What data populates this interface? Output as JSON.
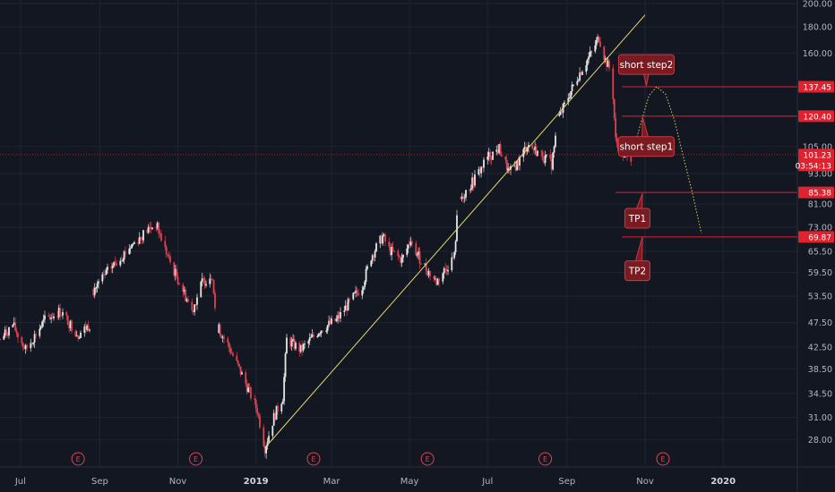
{
  "chart_data": {
    "type": "candlestick",
    "title": "",
    "y_scale": "log",
    "ylim": [
      26,
      200
    ],
    "xlim": [
      "2018-06-15",
      "2020-02-28"
    ],
    "grid": true,
    "y_ticks": [
      {
        "value": 200,
        "label": "200.00"
      },
      {
        "value": 180,
        "label": "180.00"
      },
      {
        "value": 160,
        "label": "160.00"
      },
      {
        "value": 105,
        "label": "105.00"
      },
      {
        "value": 93,
        "label": "93.00"
      },
      {
        "value": 81,
        "label": "81.00"
      },
      {
        "value": 73,
        "label": "73.00"
      },
      {
        "value": 65.5,
        "label": "65.50"
      },
      {
        "value": 59.5,
        "label": "59.50"
      },
      {
        "value": 53.5,
        "label": "53.50"
      },
      {
        "value": 47.5,
        "label": "47.50"
      },
      {
        "value": 42.5,
        "label": "42.50"
      },
      {
        "value": 38.5,
        "label": "38.50"
      },
      {
        "value": 34.5,
        "label": "34.50"
      },
      {
        "value": 31,
        "label": "31.00"
      },
      {
        "value": 28,
        "label": "28.00"
      }
    ],
    "x_ticks": [
      {
        "date": "2018-07-01",
        "label": "Jul",
        "bold": false
      },
      {
        "date": "2018-09-01",
        "label": "Sep",
        "bold": false
      },
      {
        "date": "2018-11-01",
        "label": "Nov",
        "bold": false
      },
      {
        "date": "2019-01-01",
        "label": "2019",
        "bold": true
      },
      {
        "date": "2019-03-01",
        "label": "Mar",
        "bold": false
      },
      {
        "date": "2019-05-01",
        "label": "May",
        "bold": false
      },
      {
        "date": "2019-07-01",
        "label": "Jul",
        "bold": false
      },
      {
        "date": "2019-09-01",
        "label": "Sep",
        "bold": false
      },
      {
        "date": "2019-11-01",
        "label": "Nov",
        "bold": false
      },
      {
        "date": "2020-01-01",
        "label": "2020",
        "bold": true
      }
    ],
    "price_path": [
      [
        "2018-06-15",
        44
      ],
      [
        "2018-06-25",
        47
      ],
      [
        "2018-07-05",
        42
      ],
      [
        "2018-07-20",
        48
      ],
      [
        "2018-08-01",
        50
      ],
      [
        "2018-08-15",
        45
      ],
      [
        "2018-08-24",
        47
      ],
      [
        "2018-08-27",
        55
      ],
      [
        "2018-09-10",
        61
      ],
      [
        "2018-09-25",
        67
      ],
      [
        "2018-10-08",
        72
      ],
      [
        "2018-10-15",
        74
      ],
      [
        "2018-10-25",
        63
      ],
      [
        "2018-11-05",
        55
      ],
      [
        "2018-11-12",
        50
      ],
      [
        "2018-11-20",
        57
      ],
      [
        "2018-11-28",
        59
      ],
      [
        "2018-12-01",
        47
      ],
      [
        "2018-12-10",
        43
      ],
      [
        "2018-12-20",
        38
      ],
      [
        "2019-01-02",
        32
      ],
      [
        "2019-01-08",
        27
      ],
      [
        "2019-01-15",
        31
      ],
      [
        "2019-01-22",
        34
      ],
      [
        "2019-01-25",
        44
      ],
      [
        "2019-02-05",
        42
      ],
      [
        "2019-02-20",
        46
      ],
      [
        "2019-03-05",
        48
      ],
      [
        "2019-03-15",
        52
      ],
      [
        "2019-03-25",
        56
      ],
      [
        "2019-04-01",
        64
      ],
      [
        "2019-04-10",
        70
      ],
      [
        "2019-04-15",
        66
      ],
      [
        "2019-04-25",
        63
      ],
      [
        "2019-05-01",
        68
      ],
      [
        "2019-05-08",
        64
      ],
      [
        "2019-05-15",
        60
      ],
      [
        "2019-05-22",
        57
      ],
      [
        "2019-05-30",
        61
      ],
      [
        "2019-06-05",
        64
      ],
      [
        "2019-06-08",
        82
      ],
      [
        "2019-06-20",
        90
      ],
      [
        "2019-07-01",
        100
      ],
      [
        "2019-07-10",
        104
      ],
      [
        "2019-07-18",
        93
      ],
      [
        "2019-07-25",
        98
      ],
      [
        "2019-08-01",
        106
      ],
      [
        "2019-08-10",
        102
      ],
      [
        "2019-08-20",
        97
      ],
      [
        "2019-08-25",
        118
      ],
      [
        "2019-09-01",
        130
      ],
      [
        "2019-09-10",
        145
      ],
      [
        "2019-09-20",
        160
      ],
      [
        "2019-09-26",
        172
      ],
      [
        "2019-10-01",
        155
      ],
      [
        "2019-10-06",
        146
      ],
      [
        "2019-10-09",
        108
      ],
      [
        "2019-10-14",
        102
      ],
      [
        "2019-10-18",
        99
      ],
      [
        "2019-10-22",
        101
      ]
    ],
    "price_breaks": [
      "2018-08-27",
      "2018-12-01",
      "2019-05-01",
      "2019-06-08",
      "2019-08-25"
    ],
    "trendline": {
      "from": [
        "2019-01-08",
        27
      ],
      "to": [
        "2019-11-01",
        190
      ]
    },
    "horizontal_levels": [
      {
        "value": 137.45,
        "label": "137.45",
        "from": "2019-10-14"
      },
      {
        "value": 120.4,
        "label": "120.40",
        "from": "2019-10-14"
      },
      {
        "value": 85.38,
        "label": "85.38",
        "from": "2019-10-09"
      },
      {
        "value": 69.87,
        "label": "69.87",
        "from": "2019-10-14"
      }
    ],
    "current_price": {
      "value": 101.23,
      "label": "101.23",
      "countdown": "03:54:13"
    },
    "projection": [
      [
        "2019-10-22",
        101
      ],
      [
        "2019-10-28",
        115
      ],
      [
        "2019-11-04",
        132
      ],
      [
        "2019-11-10",
        137.45
      ],
      [
        "2019-11-17",
        133
      ],
      [
        "2019-11-24",
        118
      ],
      [
        "2019-12-01",
        100
      ],
      [
        "2019-12-08",
        85
      ],
      [
        "2019-12-15",
        71
      ]
    ],
    "annotations": [
      {
        "text": "short step2",
        "box_date": "2019-11-02",
        "value": 152,
        "tip": [
          "2019-11-02",
          138
        ]
      },
      {
        "text": "short step1",
        "box_date": "2019-11-02",
        "value": 105,
        "tip": [
          "2019-10-30",
          120
        ]
      },
      {
        "text": "TP1",
        "box_date": "2019-10-26",
        "value": 76,
        "tip": [
          "2019-10-30",
          85
        ]
      },
      {
        "text": "TP2",
        "box_date": "2019-10-26",
        "value": 60,
        "tip": [
          "2019-10-30",
          70
        ]
      }
    ],
    "earnings_markers": {
      "label": "E",
      "dates": [
        "2018-08-15",
        "2018-11-15",
        "2019-02-15",
        "2019-05-15",
        "2019-08-15",
        "2019-11-15"
      ]
    }
  }
}
